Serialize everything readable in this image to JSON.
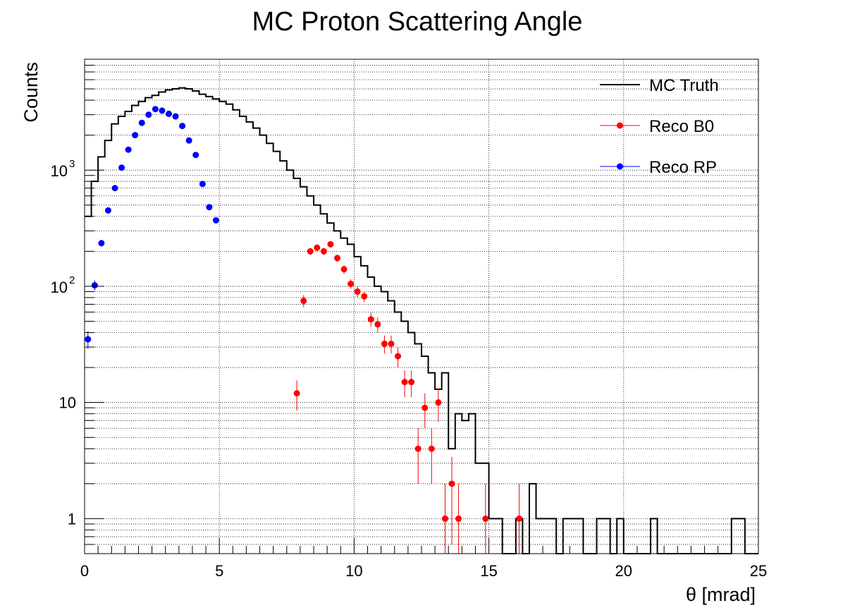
{
  "chart_data": {
    "type": "histogram",
    "title": "MC Proton Scattering Angle",
    "xlabel": "θ [mrad]",
    "ylabel": "Counts",
    "xlim": [
      0,
      25
    ],
    "ylim": [
      0.5,
      9000
    ],
    "yscale": "log",
    "grid": true,
    "legend_position": "top-right",
    "x_ticks": [
      {
        "value": 0,
        "label": "0"
      },
      {
        "value": 5,
        "label": "5"
      },
      {
        "value": 10,
        "label": "10"
      },
      {
        "value": 15,
        "label": "15"
      },
      {
        "value": 20,
        "label": "20"
      },
      {
        "value": 25,
        "label": "25"
      }
    ],
    "y_ticks": [
      {
        "value": 1,
        "label": "1",
        "exp": ""
      },
      {
        "value": 10,
        "label": "10",
        "exp": ""
      },
      {
        "value": 100,
        "label": "10",
        "exp": "2"
      },
      {
        "value": 1000,
        "label": "10",
        "exp": "3"
      }
    ],
    "series": [
      {
        "name": "MC Truth",
        "kind": "step",
        "color": "#000000",
        "bin_width": 0.25,
        "bin_start": 0,
        "values": [
          400,
          800,
          1300,
          1800,
          2500,
          2900,
          3200,
          3600,
          3900,
          4200,
          4400,
          4700,
          4900,
          5000,
          5100,
          5000,
          4800,
          4500,
          4300,
          4100,
          3900,
          3700,
          3300,
          2900,
          2600,
          2300,
          2000,
          1700,
          1450,
          1200,
          1000,
          850,
          720,
          600,
          500,
          420,
          350,
          300,
          260,
          230,
          180,
          150,
          120,
          100,
          90,
          75,
          60,
          50,
          40,
          32,
          25,
          18,
          13,
          18,
          4,
          8,
          7,
          8,
          3,
          3,
          1,
          1,
          0,
          0,
          1,
          0,
          2,
          1,
          1,
          1,
          0,
          1,
          1,
          1,
          0,
          0,
          1,
          1,
          0,
          1,
          0,
          0,
          0,
          0,
          1,
          0,
          0,
          0,
          0,
          0,
          0,
          0,
          0,
          0,
          0,
          0,
          1,
          1,
          0,
          0
        ]
      },
      {
        "name": "Reco B0",
        "kind": "points",
        "color": "#ff0000",
        "points": [
          {
            "x": 7.875,
            "y": 12,
            "err": 3.5
          },
          {
            "x": 8.125,
            "y": 75,
            "err": 9
          },
          {
            "x": 8.375,
            "y": 200,
            "err": 14
          },
          {
            "x": 8.625,
            "y": 215,
            "err": 15
          },
          {
            "x": 8.875,
            "y": 200,
            "err": 14
          },
          {
            "x": 9.125,
            "y": 230,
            "err": 15
          },
          {
            "x": 9.375,
            "y": 175,
            "err": 13
          },
          {
            "x": 9.625,
            "y": 140,
            "err": 12
          },
          {
            "x": 9.875,
            "y": 105,
            "err": 10
          },
          {
            "x": 10.125,
            "y": 90,
            "err": 9.5
          },
          {
            "x": 10.375,
            "y": 82,
            "err": 9
          },
          {
            "x": 10.625,
            "y": 52,
            "err": 7.2
          },
          {
            "x": 10.875,
            "y": 47,
            "err": 6.9
          },
          {
            "x": 11.125,
            "y": 32,
            "err": 5.7
          },
          {
            "x": 11.375,
            "y": 32,
            "err": 5.7
          },
          {
            "x": 11.625,
            "y": 25,
            "err": 5
          },
          {
            "x": 11.875,
            "y": 15,
            "err": 3.9
          },
          {
            "x": 12.125,
            "y": 15,
            "err": 3.9
          },
          {
            "x": 12.375,
            "y": 4,
            "err": 2
          },
          {
            "x": 12.625,
            "y": 9,
            "err": 3
          },
          {
            "x": 12.875,
            "y": 4,
            "err": 2
          },
          {
            "x": 13.125,
            "y": 10,
            "err": 3.2
          },
          {
            "x": 13.375,
            "y": 1,
            "err": 1
          },
          {
            "x": 13.625,
            "y": 2,
            "err": 1.4
          },
          {
            "x": 13.875,
            "y": 1,
            "err": 1
          },
          {
            "x": 14.875,
            "y": 1,
            "err": 1
          },
          {
            "x": 16.125,
            "y": 1,
            "err": 1
          }
        ]
      },
      {
        "name": "Reco RP",
        "kind": "points",
        "color": "#0000ff",
        "points": [
          {
            "x": 0.125,
            "y": 35,
            "err": 6
          },
          {
            "x": 0.375,
            "y": 102,
            "err": 10
          },
          {
            "x": 0.625,
            "y": 235,
            "err": 15
          },
          {
            "x": 0.875,
            "y": 450,
            "err": 21
          },
          {
            "x": 1.125,
            "y": 700,
            "err": 26
          },
          {
            "x": 1.375,
            "y": 1050,
            "err": 32
          },
          {
            "x": 1.625,
            "y": 1500,
            "err": 39
          },
          {
            "x": 1.875,
            "y": 2000,
            "err": 45
          },
          {
            "x": 2.125,
            "y": 2550,
            "err": 50
          },
          {
            "x": 2.375,
            "y": 3000,
            "err": 55
          },
          {
            "x": 2.625,
            "y": 3350,
            "err": 58
          },
          {
            "x": 2.875,
            "y": 3250,
            "err": 57
          },
          {
            "x": 3.125,
            "y": 3050,
            "err": 55
          },
          {
            "x": 3.375,
            "y": 2900,
            "err": 54
          },
          {
            "x": 3.625,
            "y": 2400,
            "err": 49
          },
          {
            "x": 3.875,
            "y": 1800,
            "err": 42
          },
          {
            "x": 4.125,
            "y": 1350,
            "err": 37
          },
          {
            "x": 4.375,
            "y": 760,
            "err": 28
          },
          {
            "x": 4.625,
            "y": 480,
            "err": 22
          },
          {
            "x": 4.875,
            "y": 370,
            "err": 19
          }
        ]
      }
    ]
  }
}
